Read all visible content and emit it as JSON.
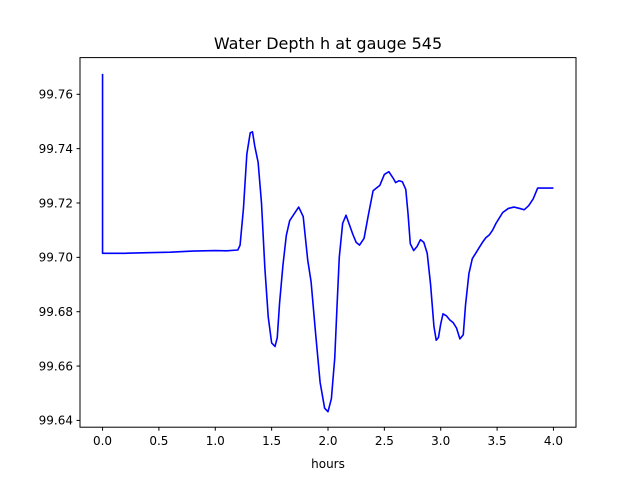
{
  "chart_data": {
    "type": "line",
    "title": "Water Depth h at gauge 545",
    "xlabel": "hours",
    "ylabel": "",
    "xlim": [
      -0.2,
      4.2
    ],
    "ylim": [
      99.6375,
      99.7735
    ],
    "xticks": [
      0.0,
      0.5,
      1.0,
      1.5,
      2.0,
      2.5,
      3.0,
      3.5,
      4.0
    ],
    "xtick_labels": [
      "0.0",
      "0.5",
      "1.0",
      "1.5",
      "2.0",
      "2.5",
      "3.0",
      "3.5",
      "4.0"
    ],
    "yticks": [
      99.64,
      99.66,
      99.68,
      99.7,
      99.72,
      99.74,
      99.76
    ],
    "ytick_labels": [
      "99.64",
      "99.66",
      "99.68",
      "99.70",
      "99.72",
      "99.74",
      "99.76"
    ],
    "grid": false,
    "series": [
      {
        "color": "#0000ff",
        "x": [
          0.0,
          0.0,
          0.05,
          0.2,
          0.4,
          0.6,
          0.8,
          1.0,
          1.1,
          1.2,
          1.22,
          1.25,
          1.28,
          1.31,
          1.33,
          1.35,
          1.38,
          1.41,
          1.44,
          1.47,
          1.5,
          1.53,
          1.55,
          1.57,
          1.6,
          1.63,
          1.66,
          1.7,
          1.74,
          1.78,
          1.8,
          1.82,
          1.85,
          1.89,
          1.93,
          1.97,
          2.0,
          2.03,
          2.06,
          2.08,
          2.1,
          2.13,
          2.16,
          2.19,
          2.22,
          2.25,
          2.28,
          2.32,
          2.36,
          2.4,
          2.43,
          2.46,
          2.5,
          2.54,
          2.58,
          2.6,
          2.63,
          2.66,
          2.69,
          2.71,
          2.73,
          2.76,
          2.79,
          2.82,
          2.85,
          2.88,
          2.91,
          2.94,
          2.96,
          2.98,
          3.0,
          3.02,
          3.05,
          3.08,
          3.11,
          3.14,
          3.17,
          3.2,
          3.22,
          3.25,
          3.28,
          3.31,
          3.34,
          3.37,
          3.4,
          3.43,
          3.46,
          3.49,
          3.52,
          3.55,
          3.6,
          3.65,
          3.7,
          3.74,
          3.78,
          3.82,
          3.86,
          3.9,
          3.93,
          3.96,
          4.0
        ],
        "y": [
          99.7675,
          99.7015,
          99.7015,
          99.7015,
          99.7017,
          99.7019,
          99.7023,
          99.7025,
          99.7024,
          99.7027,
          99.7045,
          99.718,
          99.738,
          99.7458,
          99.7462,
          99.741,
          99.735,
          99.72,
          99.696,
          99.678,
          99.6685,
          99.6672,
          99.6705,
          99.683,
          99.697,
          99.708,
          99.7135,
          99.716,
          99.7185,
          99.715,
          99.707,
          99.699,
          99.691,
          99.672,
          99.654,
          99.6445,
          99.6432,
          99.648,
          99.663,
          99.682,
          99.7,
          99.7125,
          99.7155,
          99.712,
          99.7085,
          99.7055,
          99.7045,
          99.707,
          99.716,
          99.7245,
          99.7255,
          99.7265,
          99.7305,
          99.7315,
          99.729,
          99.7275,
          99.7282,
          99.7278,
          99.725,
          99.716,
          99.705,
          99.7025,
          99.704,
          99.7065,
          99.7055,
          99.7015,
          99.69,
          99.6745,
          99.6695,
          99.6705,
          99.6755,
          99.6792,
          99.6785,
          99.677,
          99.676,
          99.674,
          99.67,
          99.6715,
          99.6825,
          99.694,
          99.6995,
          99.7015,
          99.7035,
          99.7055,
          99.7072,
          99.7082,
          99.71,
          99.7125,
          99.7145,
          99.7165,
          99.718,
          99.7185,
          99.718,
          99.7175,
          99.719,
          99.7215,
          99.7255,
          99.7255,
          99.7255,
          99.7255,
          99.7255
        ]
      }
    ]
  }
}
